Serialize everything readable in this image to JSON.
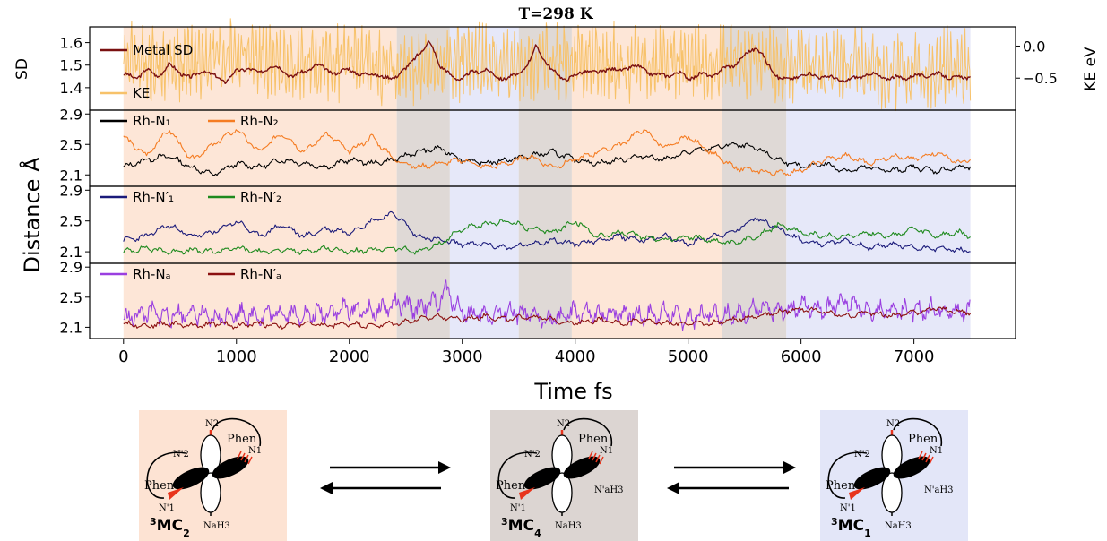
{
  "title": "T=298 K",
  "colors": {
    "mc2": "#fde3d3",
    "mc4": "#dcd5d2",
    "mc1": "#e3e6f8",
    "metal_sd": "#7a1010",
    "ke": "#f7c26a",
    "rh_n1": "#000000",
    "rh_n2": "#f57c22",
    "rh_n1p": "#1a1a7a",
    "rh_n2p": "#1e8a1e",
    "rh_na": "#9a3fe0",
    "rh_nap": "#8b1010",
    "ligand_red": "#e8341c"
  },
  "chart_data": [
    {
      "type": "line",
      "panel": "top",
      "ylabel": "SD",
      "ylabel_right": "KE eV",
      "ylim": [
        1.3,
        1.67
      ],
      "yticks": [
        "1.4",
        "1.5",
        "1.6"
      ],
      "ylim_right": [
        -1.0,
        0.3
      ],
      "yticks_right": [
        "0.0",
        "−0.5"
      ],
      "legend_position": "top-left",
      "series": [
        {
          "name": "Metal SD",
          "axis": "left",
          "x": [
            0,
            100,
            200,
            300,
            400,
            500,
            600,
            700,
            800,
            900,
            1000,
            1100,
            1200,
            1300,
            1400,
            1500,
            1600,
            1700,
            1800,
            1900,
            2000,
            2100,
            2200,
            2300,
            2400,
            2500,
            2600,
            2650,
            2700,
            2750,
            2800,
            2900,
            3000,
            3100,
            3200,
            3300,
            3400,
            3500,
            3600,
            3650,
            3700,
            3800,
            3900,
            4000,
            4100,
            4200,
            4300,
            4400,
            4500,
            4600,
            4700,
            4800,
            4900,
            5000,
            5100,
            5200,
            5300,
            5400,
            5500,
            5600,
            5650,
            5700,
            5800,
            5900,
            6000,
            6200,
            6400,
            6600,
            6800,
            7000,
            7200,
            7400,
            7500
          ],
          "y": [
            1.46,
            1.44,
            1.48,
            1.45,
            1.5,
            1.47,
            1.44,
            1.48,
            1.45,
            1.43,
            1.47,
            1.49,
            1.46,
            1.5,
            1.48,
            1.45,
            1.47,
            1.5,
            1.48,
            1.46,
            1.49,
            1.45,
            1.47,
            1.44,
            1.45,
            1.48,
            1.55,
            1.56,
            1.6,
            1.57,
            1.5,
            1.45,
            1.44,
            1.47,
            1.48,
            1.45,
            1.44,
            1.46,
            1.52,
            1.58,
            1.55,
            1.47,
            1.44,
            1.45,
            1.48,
            1.46,
            1.49,
            1.47,
            1.5,
            1.48,
            1.46,
            1.45,
            1.47,
            1.44,
            1.46,
            1.45,
            1.48,
            1.5,
            1.54,
            1.58,
            1.56,
            1.5,
            1.45,
            1.43,
            1.46,
            1.45,
            1.43,
            1.46,
            1.44,
            1.45,
            1.46,
            1.44,
            1.45
          ]
        },
        {
          "name": "KE",
          "axis": "right",
          "x": [
            0,
            500,
            1000,
            1500,
            2000,
            2500,
            3000,
            3500,
            4000,
            4500,
            5000,
            5500,
            6000,
            6500,
            7000,
            7500
          ],
          "y": [
            -0.2,
            -0.3,
            -0.1,
            -0.35,
            -0.2,
            -0.4,
            -0.25,
            -0.3,
            -0.2,
            -0.3,
            -0.25,
            -0.2,
            -0.35,
            -0.3,
            -0.4,
            -0.3
          ]
        }
      ]
    },
    {
      "type": "line",
      "panel": "upper-middle",
      "ylim": [
        1.95,
        2.95
      ],
      "yticks": [
        "2.1",
        "2.5",
        "2.9"
      ],
      "legend_position": "top-left",
      "series": [
        {
          "name": "Rh-N₁",
          "x": [
            0,
            200,
            400,
            600,
            800,
            1000,
            1200,
            1400,
            1600,
            1800,
            2000,
            2200,
            2400,
            2600,
            2800,
            3000,
            3200,
            3400,
            3600,
            3800,
            4000,
            4200,
            4400,
            4600,
            4800,
            5000,
            5200,
            5400,
            5600,
            5800,
            6000,
            6200,
            6400,
            6600,
            6800,
            7000,
            7200,
            7400,
            7500
          ],
          "y": [
            2.2,
            2.3,
            2.35,
            2.2,
            2.1,
            2.25,
            2.2,
            2.3,
            2.25,
            2.2,
            2.3,
            2.25,
            2.3,
            2.4,
            2.45,
            2.3,
            2.25,
            2.3,
            2.35,
            2.4,
            2.3,
            2.25,
            2.3,
            2.35,
            2.3,
            2.4,
            2.45,
            2.5,
            2.45,
            2.3,
            2.2,
            2.25,
            2.15,
            2.2,
            2.15,
            2.2,
            2.15,
            2.2,
            2.2
          ]
        },
        {
          "name": "Rh-N₂",
          "x": [
            0,
            200,
            400,
            600,
            800,
            1000,
            1200,
            1400,
            1600,
            1800,
            2000,
            2200,
            2400,
            2600,
            2800,
            3000,
            3200,
            3400,
            3600,
            3800,
            4000,
            4200,
            4400,
            4600,
            4800,
            5000,
            5200,
            5400,
            5600,
            5800,
            6000,
            6200,
            6400,
            6600,
            6800,
            7000,
            7200,
            7400,
            7500
          ],
          "y": [
            2.6,
            2.35,
            2.7,
            2.3,
            2.5,
            2.7,
            2.4,
            2.65,
            2.4,
            2.65,
            2.4,
            2.6,
            2.3,
            2.2,
            2.25,
            2.3,
            2.2,
            2.25,
            2.35,
            2.2,
            2.3,
            2.4,
            2.5,
            2.7,
            2.45,
            2.6,
            2.4,
            2.2,
            2.15,
            2.12,
            2.15,
            2.3,
            2.35,
            2.25,
            2.35,
            2.3,
            2.4,
            2.25,
            2.3
          ]
        }
      ]
    },
    {
      "type": "line",
      "panel": "lower-middle",
      "ylim": [
        1.95,
        2.95
      ],
      "yticks": [
        "2.1",
        "2.5",
        "2.9"
      ],
      "legend_position": "top-left",
      "series": [
        {
          "name": "Rh-N′₁",
          "x": [
            0,
            200,
            400,
            600,
            800,
            1000,
            1200,
            1400,
            1600,
            1800,
            2000,
            2200,
            2400,
            2600,
            2800,
            3000,
            3200,
            3400,
            3600,
            3800,
            4000,
            4200,
            4400,
            4600,
            4800,
            5000,
            5200,
            5400,
            5600,
            5800,
            6000,
            6200,
            6400,
            6600,
            6800,
            7000,
            7200,
            7400,
            7500
          ],
          "y": [
            2.25,
            2.3,
            2.45,
            2.3,
            2.35,
            2.5,
            2.3,
            2.45,
            2.3,
            2.4,
            2.35,
            2.5,
            2.6,
            2.3,
            2.25,
            2.2,
            2.2,
            2.15,
            2.2,
            2.25,
            2.2,
            2.25,
            2.3,
            2.25,
            2.3,
            2.2,
            2.3,
            2.35,
            2.55,
            2.4,
            2.25,
            2.2,
            2.25,
            2.15,
            2.2,
            2.15,
            2.15,
            2.12,
            2.1
          ]
        },
        {
          "name": "Rh-N′₂",
          "x": [
            0,
            200,
            400,
            600,
            800,
            1000,
            1200,
            1400,
            1600,
            1800,
            2000,
            2200,
            2400,
            2600,
            2800,
            3000,
            3200,
            3400,
            3600,
            3800,
            4000,
            4200,
            4400,
            4600,
            4800,
            5000,
            5200,
            5400,
            5600,
            5800,
            6000,
            6200,
            6400,
            6600,
            6800,
            7000,
            7200,
            7400,
            7500
          ],
          "y": [
            2.1,
            2.15,
            2.1,
            2.12,
            2.1,
            2.15,
            2.1,
            2.12,
            2.1,
            2.15,
            2.1,
            2.12,
            2.15,
            2.1,
            2.2,
            2.4,
            2.45,
            2.5,
            2.4,
            2.35,
            2.5,
            2.3,
            2.35,
            2.3,
            2.25,
            2.3,
            2.25,
            2.2,
            2.3,
            2.45,
            2.35,
            2.3,
            2.3,
            2.35,
            2.3,
            2.4,
            2.3,
            2.35,
            2.3
          ]
        }
      ]
    },
    {
      "type": "line",
      "panel": "bottom",
      "ylim": [
        1.95,
        2.95
      ],
      "yticks": [
        "2.1",
        "2.5",
        "2.9"
      ],
      "xlabel": "Time fs",
      "xlim": [
        -300,
        7900
      ],
      "xticks": [
        "0",
        "1000",
        "2000",
        "3000",
        "4000",
        "5000",
        "6000",
        "7000"
      ],
      "legend_position": "top-left",
      "series": [
        {
          "name": "Rh-Nₐ",
          "x": [
            0,
            200,
            400,
            600,
            800,
            1000,
            1200,
            1400,
            1600,
            1800,
            2000,
            2200,
            2400,
            2600,
            2800,
            2850,
            3000,
            3200,
            3400,
            3600,
            3800,
            4000,
            4200,
            4400,
            4600,
            4800,
            5000,
            5200,
            5400,
            5600,
            5800,
            6000,
            6200,
            6400,
            6600,
            6800,
            7000,
            7200,
            7400,
            7500
          ],
          "y": [
            2.2,
            2.3,
            2.25,
            2.3,
            2.2,
            2.3,
            2.25,
            2.3,
            2.25,
            2.3,
            2.35,
            2.3,
            2.4,
            2.35,
            2.45,
            2.6,
            2.3,
            2.25,
            2.3,
            2.25,
            2.2,
            2.3,
            2.25,
            2.3,
            2.25,
            2.3,
            2.2,
            2.3,
            2.25,
            2.35,
            2.3,
            2.4,
            2.35,
            2.45,
            2.3,
            2.35,
            2.3,
            2.35,
            2.3,
            2.35
          ]
        },
        {
          "name": "Rh-N′ₐ",
          "x": [
            0,
            200,
            400,
            600,
            800,
            1000,
            1200,
            1400,
            1600,
            1800,
            2000,
            2200,
            2400,
            2600,
            2800,
            3000,
            3200,
            3400,
            3600,
            3800,
            4000,
            4200,
            4400,
            4600,
            4800,
            5000,
            5200,
            5400,
            5600,
            5800,
            6000,
            6200,
            6400,
            6600,
            6800,
            7000,
            7200,
            7400,
            7500
          ],
          "y": [
            2.15,
            2.12,
            2.15,
            2.12,
            2.15,
            2.12,
            2.15,
            2.12,
            2.15,
            2.12,
            2.15,
            2.12,
            2.15,
            2.2,
            2.25,
            2.2,
            2.25,
            2.2,
            2.25,
            2.2,
            2.15,
            2.2,
            2.15,
            2.2,
            2.15,
            2.15,
            2.15,
            2.2,
            2.25,
            2.3,
            2.35,
            2.3,
            2.25,
            2.3,
            2.25,
            2.3,
            2.35,
            2.3,
            2.3
          ]
        }
      ]
    }
  ],
  "shared": {
    "ylabel": "Distance Å",
    "regions": [
      {
        "state": "3MC2",
        "start": 0,
        "end": 2420
      },
      {
        "state": "3MC4",
        "start": 2420,
        "end": 2890
      },
      {
        "state": "3MC1",
        "start": 2890,
        "end": 3500
      },
      {
        "state": "3MC4",
        "start": 3500,
        "end": 3970
      },
      {
        "state": "3MC2",
        "start": 3970,
        "end": 5300
      },
      {
        "state": "3MC4",
        "start": 5300,
        "end": 5870
      },
      {
        "state": "3MC1",
        "start": 5870,
        "end": 7500
      }
    ]
  },
  "scheme": {
    "structures": [
      {
        "id": "mc2",
        "label_sup": "3",
        "label_main": "MC",
        "label_sub": "2",
        "atoms": {
          "n2": "N2",
          "n1": "N1",
          "n2p": "N'2",
          "n1p": "N'1",
          "nap": "",
          "na": "NaH3"
        },
        "ligands": {
          "phen": "Phen",
          "phenp": "Phen'"
        }
      },
      {
        "id": "mc4",
        "label_sup": "3",
        "label_main": "MC",
        "label_sub": "4",
        "atoms": {
          "n2": "N2",
          "n1": "N1",
          "n2p": "N'2",
          "n1p": "N'1",
          "nap": "N'aH3",
          "na": "NaH3"
        },
        "ligands": {
          "phen": "Phen",
          "phenp": "Phen'"
        }
      },
      {
        "id": "mc1",
        "label_sup": "3",
        "label_main": "MC",
        "label_sub": "1",
        "atoms": {
          "n2": "N2",
          "n1": "N1",
          "n2p": "N'2",
          "n1p": "N'1",
          "nap": "N'aH3",
          "na": "NaH3"
        },
        "ligands": {
          "phen": "Phen",
          "phenp": "Phen'"
        }
      }
    ]
  }
}
